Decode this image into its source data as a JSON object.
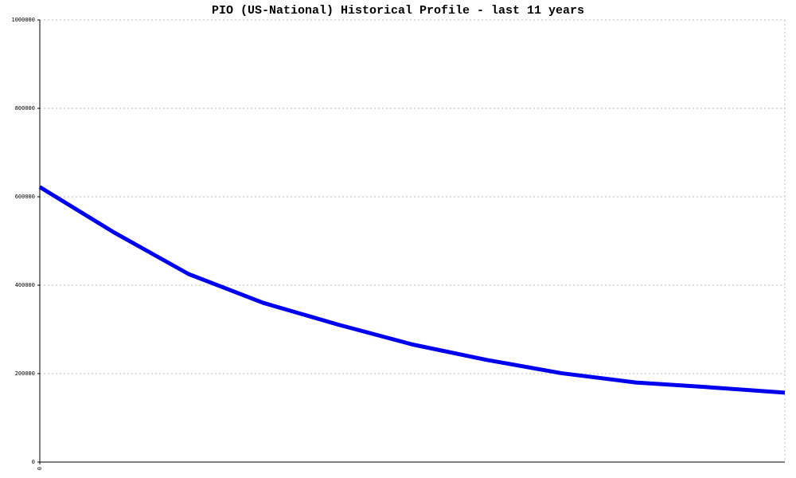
{
  "chart_data": {
    "type": "line",
    "title": "PIO (US-National) Historical Profile - last 11 years",
    "categories": [
      "0",
      null,
      null,
      null,
      null,
      null,
      null,
      null,
      null,
      null,
      null
    ],
    "series": [
      {
        "name": "PIO",
        "color": "#0000ee",
        "values": [
          622000,
          519000,
          425000,
          360000,
          311000,
          266000,
          231000,
          201000,
          180000,
          169000,
          157000
        ]
      }
    ],
    "ylim": [
      0,
      1000000
    ],
    "yticks": [
      0,
      200000,
      400000,
      600000,
      800000,
      1000000
    ],
    "grid": true
  }
}
